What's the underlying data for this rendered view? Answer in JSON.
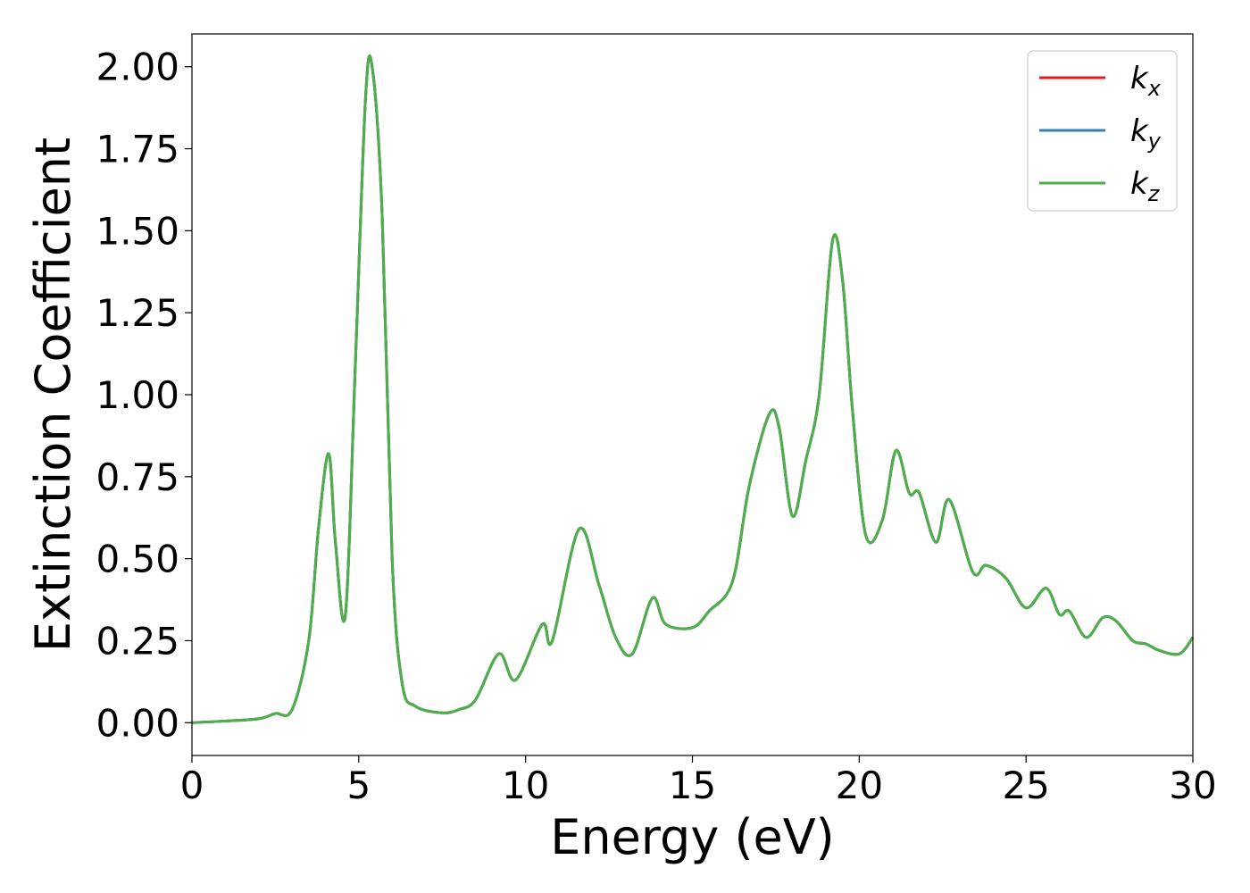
{
  "chart_data": {
    "type": "line",
    "title": "",
    "xlabel": "Energy (eV)",
    "ylabel": "Extinction Coefficient",
    "xlim": [
      0,
      30
    ],
    "ylim": [
      -0.1,
      2.1
    ],
    "xticks": [
      0,
      5,
      10,
      15,
      20,
      25,
      30
    ],
    "xtick_labels": [
      "0",
      "5",
      "10",
      "15",
      "20",
      "25",
      "30"
    ],
    "yticks": [
      0,
      0.25,
      0.5,
      0.75,
      1.0,
      1.25,
      1.5,
      1.75,
      2.0
    ],
    "ytick_labels": [
      "0.00",
      "0.25",
      "0.50",
      "0.75",
      "1.00",
      "1.25",
      "1.50",
      "1.75",
      "2.00"
    ],
    "grid": false,
    "legend_position": "top-right",
    "x": [
      0,
      1,
      2,
      2.5,
      3,
      3.5,
      3.8,
      4.1,
      4.3,
      4.6,
      4.9,
      5.2,
      5.4,
      5.7,
      6.0,
      6.3,
      6.7,
      7.5,
      8.0,
      8.5,
      9.2,
      9.7,
      10.5,
      10.8,
      11.6,
      12.2,
      12.7,
      13.2,
      13.8,
      14.2,
      15.0,
      15.5,
      16.2,
      16.7,
      17.3,
      17.6,
      18.0,
      18.4,
      18.8,
      19.2,
      19.5,
      19.8,
      20.2,
      20.7,
      21.1,
      21.5,
      21.8,
      22.3,
      22.7,
      23.4,
      23.8,
      24.4,
      25.0,
      25.6,
      26.0,
      26.3,
      26.8,
      27.3,
      27.7,
      28.2,
      28.6,
      29.0,
      29.6,
      30.0
    ],
    "series": [
      {
        "name": "k_x",
        "label_main": "k",
        "label_sub": "x",
        "color": "#e41a1c",
        "values": [
          0.0,
          0.005,
          0.012,
          0.028,
          0.04,
          0.25,
          0.6,
          0.82,
          0.55,
          0.33,
          1.1,
          1.9,
          2.0,
          1.55,
          0.5,
          0.12,
          0.05,
          0.03,
          0.04,
          0.07,
          0.21,
          0.13,
          0.3,
          0.25,
          0.59,
          0.42,
          0.26,
          0.21,
          0.38,
          0.3,
          0.29,
          0.34,
          0.43,
          0.72,
          0.94,
          0.9,
          0.63,
          0.8,
          1.0,
          1.47,
          1.35,
          0.95,
          0.57,
          0.62,
          0.83,
          0.7,
          0.7,
          0.55,
          0.68,
          0.46,
          0.48,
          0.44,
          0.35,
          0.41,
          0.33,
          0.34,
          0.26,
          0.32,
          0.31,
          0.25,
          0.24,
          0.22,
          0.21,
          0.26
        ]
      },
      {
        "name": "k_y",
        "label_main": "k",
        "label_sub": "y",
        "color": "#377eb8",
        "values": [
          0.0,
          0.005,
          0.012,
          0.028,
          0.04,
          0.25,
          0.6,
          0.82,
          0.55,
          0.33,
          1.1,
          1.9,
          2.0,
          1.55,
          0.5,
          0.12,
          0.05,
          0.03,
          0.04,
          0.07,
          0.21,
          0.13,
          0.3,
          0.25,
          0.59,
          0.42,
          0.26,
          0.21,
          0.38,
          0.3,
          0.29,
          0.34,
          0.43,
          0.72,
          0.94,
          0.9,
          0.63,
          0.8,
          1.0,
          1.47,
          1.35,
          0.95,
          0.57,
          0.62,
          0.83,
          0.7,
          0.7,
          0.55,
          0.68,
          0.46,
          0.48,
          0.44,
          0.35,
          0.41,
          0.33,
          0.34,
          0.26,
          0.32,
          0.31,
          0.25,
          0.24,
          0.22,
          0.21,
          0.26
        ]
      },
      {
        "name": "k_z",
        "label_main": "k",
        "label_sub": "z",
        "color": "#4daf4a",
        "values": [
          0.0,
          0.005,
          0.012,
          0.028,
          0.04,
          0.25,
          0.6,
          0.82,
          0.55,
          0.33,
          1.1,
          1.9,
          2.0,
          1.55,
          0.5,
          0.12,
          0.05,
          0.03,
          0.04,
          0.07,
          0.21,
          0.13,
          0.3,
          0.25,
          0.59,
          0.42,
          0.26,
          0.21,
          0.38,
          0.3,
          0.29,
          0.34,
          0.43,
          0.72,
          0.94,
          0.9,
          0.63,
          0.8,
          1.0,
          1.47,
          1.35,
          0.95,
          0.57,
          0.62,
          0.83,
          0.7,
          0.7,
          0.55,
          0.68,
          0.46,
          0.48,
          0.44,
          0.35,
          0.41,
          0.33,
          0.34,
          0.26,
          0.32,
          0.31,
          0.25,
          0.24,
          0.22,
          0.21,
          0.26
        ]
      }
    ]
  }
}
